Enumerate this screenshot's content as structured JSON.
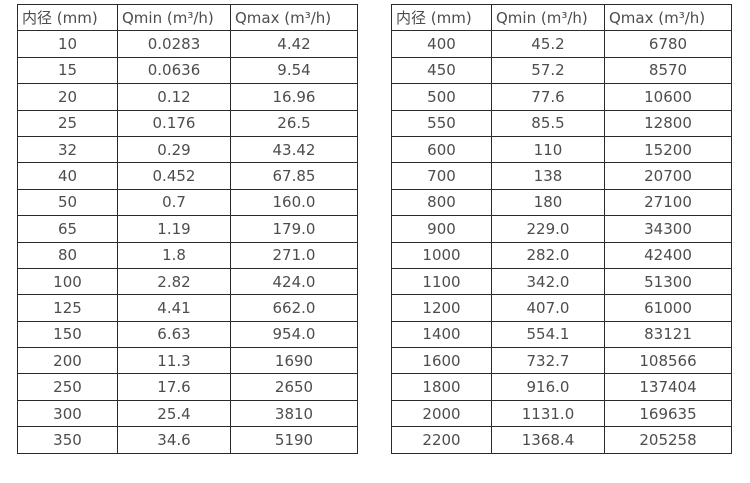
{
  "colors": {
    "background": "#ffffff",
    "table_border": "#2b2b2b",
    "text": "#4d4d4d"
  },
  "tables": [
    {
      "name": "flow-table-small-diameters",
      "headers": [
        "内径 (mm)",
        "Qmin (m³/h)",
        "Qmax (m³/h)"
      ],
      "rows": [
        [
          "10",
          "0.0283",
          "4.42"
        ],
        [
          "15",
          "0.0636",
          "9.54"
        ],
        [
          "20",
          "0.12",
          "16.96"
        ],
        [
          "25",
          "0.176",
          "26.5"
        ],
        [
          "32",
          "0.29",
          "43.42"
        ],
        [
          "40",
          "0.452",
          "67.85"
        ],
        [
          "50",
          "0.7",
          "160.0"
        ],
        [
          "65",
          "1.19",
          "179.0"
        ],
        [
          "80",
          "1.8",
          "271.0"
        ],
        [
          "100",
          "2.82",
          "424.0"
        ],
        [
          "125",
          "4.41",
          "662.0"
        ],
        [
          "150",
          "6.63",
          "954.0"
        ],
        [
          "200",
          "11.3",
          "1690"
        ],
        [
          "250",
          "17.6",
          "2650"
        ],
        [
          "300",
          "25.4",
          "3810"
        ],
        [
          "350",
          "34.6",
          "5190"
        ]
      ]
    },
    {
      "name": "flow-table-large-diameters",
      "headers": [
        "内径 (mm)",
        "Qmin (m³/h)",
        "Qmax (m³/h)"
      ],
      "rows": [
        [
          "400",
          "45.2",
          "6780"
        ],
        [
          "450",
          "57.2",
          "8570"
        ],
        [
          "500",
          "77.6",
          "10600"
        ],
        [
          "550",
          "85.5",
          "12800"
        ],
        [
          "600",
          "110",
          "15200"
        ],
        [
          "700",
          "138",
          "20700"
        ],
        [
          "800",
          "180",
          "27100"
        ],
        [
          "900",
          "229.0",
          "34300"
        ],
        [
          "1000",
          "282.0",
          "42400"
        ],
        [
          "1100",
          "342.0",
          "51300"
        ],
        [
          "1200",
          "407.0",
          "61000"
        ],
        [
          "1400",
          "554.1",
          "83121"
        ],
        [
          "1600",
          "732.7",
          "108566"
        ],
        [
          "1800",
          "916.0",
          "137404"
        ],
        [
          "2000",
          "1131.0",
          "169635"
        ],
        [
          "2200",
          "1368.4",
          "205258"
        ]
      ]
    }
  ]
}
